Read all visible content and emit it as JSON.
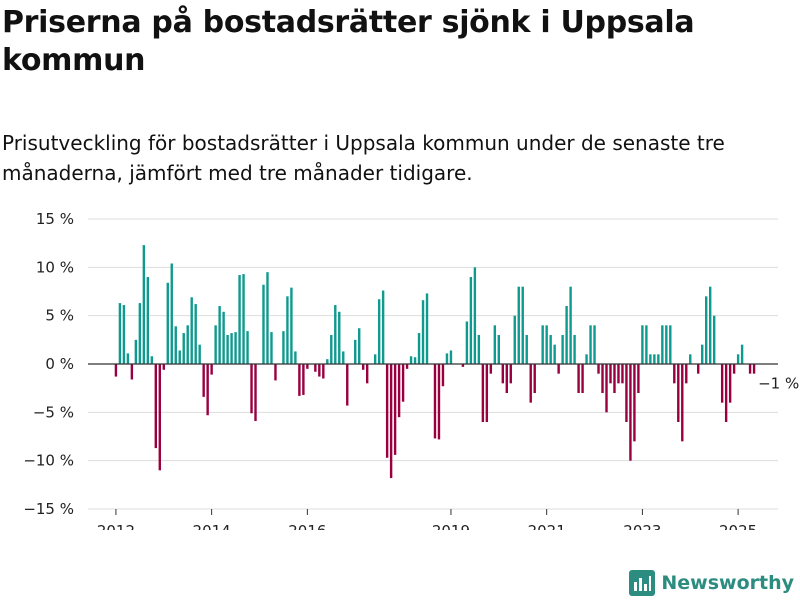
{
  "title": "Priserna på bostadsrätter sjönk i Uppsala kommun",
  "subtitle": "Prisutveckling för bostadsrätter i Uppsala kommun under de senaste tre månaderna, jämfört med tre månader tidigare.",
  "brand": {
    "name": "Newsworthy",
    "icon": "newsworthy-logo-icon"
  },
  "colors": {
    "positive": "#0f9a8f",
    "negative": "#990040",
    "grid": "#dddddd",
    "axis": "#333333"
  },
  "chart_data": {
    "type": "bar",
    "title": "Priserna på bostadsrätter sjönk i Uppsala kommun",
    "subtitle": "Prisutveckling för bostadsrätter i Uppsala kommun under de senaste tre månaderna, jämfört med tre månader tidigare.",
    "xlabel": "",
    "ylabel": "",
    "unit": "%",
    "ylim": [
      -15,
      15
    ],
    "y_ticks": [
      15,
      10,
      5,
      0,
      -5,
      -10,
      -15
    ],
    "y_tick_labels": [
      "15 %",
      "10 %",
      "5 %",
      "0 %",
      "−5 %",
      "−10 %",
      "−15 %"
    ],
    "x_ticks": [
      2012,
      2014,
      2016,
      2019,
      2021,
      2023,
      2025
    ],
    "x_range": [
      "2011-06",
      "2025-11"
    ],
    "grid": "horizontal",
    "end_label": "−1 %",
    "series": [
      {
        "values": [
          {
            "x": "2012-01",
            "y": -1.3
          },
          {
            "x": "2012-02",
            "y": 6.3
          },
          {
            "x": "2012-03",
            "y": 6.1
          },
          {
            "x": "2012-04",
            "y": 1.1
          },
          {
            "x": "2012-05",
            "y": -1.6
          },
          {
            "x": "2012-06",
            "y": 2.5
          },
          {
            "x": "2012-07",
            "y": 6.3
          },
          {
            "x": "2012-08",
            "y": 12.3
          },
          {
            "x": "2012-09",
            "y": 9.0
          },
          {
            "x": "2012-10",
            "y": 0.8
          },
          {
            "x": "2012-11",
            "y": -8.7
          },
          {
            "x": "2012-12",
            "y": -11.0
          },
          {
            "x": "2013-01",
            "y": -0.6
          },
          {
            "x": "2013-02",
            "y": 8.4
          },
          {
            "x": "2013-03",
            "y": 10.4
          },
          {
            "x": "2013-04",
            "y": 3.9
          },
          {
            "x": "2013-05",
            "y": 1.4
          },
          {
            "x": "2013-06",
            "y": 3.2
          },
          {
            "x": "2013-07",
            "y": 4.0
          },
          {
            "x": "2013-08",
            "y": 6.9
          },
          {
            "x": "2013-09",
            "y": 6.2
          },
          {
            "x": "2013-10",
            "y": 2.0
          },
          {
            "x": "2013-11",
            "y": -3.4
          },
          {
            "x": "2013-12",
            "y": -5.3
          },
          {
            "x": "2014-01",
            "y": -1.1
          },
          {
            "x": "2014-02",
            "y": 4.0
          },
          {
            "x": "2014-03",
            "y": 6.0
          },
          {
            "x": "2014-04",
            "y": 5.4
          },
          {
            "x": "2014-05",
            "y": 3.0
          },
          {
            "x": "2014-06",
            "y": 3.2
          },
          {
            "x": "2014-07",
            "y": 3.3
          },
          {
            "x": "2014-08",
            "y": 9.2
          },
          {
            "x": "2014-09",
            "y": 9.3
          },
          {
            "x": "2014-10",
            "y": 3.4
          },
          {
            "x": "2014-11",
            "y": -5.1
          },
          {
            "x": "2014-12",
            "y": -5.9
          },
          {
            "x": "2015-02",
            "y": 8.2
          },
          {
            "x": "2015-03",
            "y": 9.5
          },
          {
            "x": "2015-04",
            "y": 3.3
          },
          {
            "x": "2015-05",
            "y": -1.7
          },
          {
            "x": "2015-07",
            "y": 3.4
          },
          {
            "x": "2015-08",
            "y": 7.0
          },
          {
            "x": "2015-09",
            "y": 7.9
          },
          {
            "x": "2015-10",
            "y": 1.3
          },
          {
            "x": "2015-11",
            "y": -3.3
          },
          {
            "x": "2015-12",
            "y": -3.2
          },
          {
            "x": "2016-01",
            "y": -0.5
          },
          {
            "x": "2016-03",
            "y": -0.8
          },
          {
            "x": "2016-04",
            "y": -1.3
          },
          {
            "x": "2016-05",
            "y": -1.5
          },
          {
            "x": "2016-06",
            "y": 0.5
          },
          {
            "x": "2016-07",
            "y": 3.0
          },
          {
            "x": "2016-08",
            "y": 6.1
          },
          {
            "x": "2016-09",
            "y": 5.4
          },
          {
            "x": "2016-10",
            "y": 1.3
          },
          {
            "x": "2016-11",
            "y": -4.3
          },
          {
            "x": "2017-01",
            "y": 2.5
          },
          {
            "x": "2017-02",
            "y": 3.7
          },
          {
            "x": "2017-03",
            "y": -0.6
          },
          {
            "x": "2017-04",
            "y": -2.0
          },
          {
            "x": "2017-06",
            "y": 1.0
          },
          {
            "x": "2017-07",
            "y": 6.7
          },
          {
            "x": "2017-08",
            "y": 7.6
          },
          {
            "x": "2017-09",
            "y": -9.7
          },
          {
            "x": "2017-10",
            "y": -11.8
          },
          {
            "x": "2017-11",
            "y": -9.4
          },
          {
            "x": "2017-12",
            "y": -5.5
          },
          {
            "x": "2018-01",
            "y": -3.9
          },
          {
            "x": "2018-02",
            "y": -0.5
          },
          {
            "x": "2018-03",
            "y": 0.8
          },
          {
            "x": "2018-04",
            "y": 0.7
          },
          {
            "x": "2018-05",
            "y": 3.2
          },
          {
            "x": "2018-06",
            "y": 6.6
          },
          {
            "x": "2018-07",
            "y": 7.3
          },
          {
            "x": "2018-09",
            "y": -7.7
          },
          {
            "x": "2018-10",
            "y": -7.8
          },
          {
            "x": "2018-11",
            "y": -2.3
          },
          {
            "x": "2018-12",
            "y": 1.1
          },
          {
            "x": "2019-01",
            "y": 1.4
          },
          {
            "x": "2019-04",
            "y": -0.3
          },
          {
            "x": "2019-05",
            "y": 4.4
          },
          {
            "x": "2019-06",
            "y": 9.0
          },
          {
            "x": "2019-07",
            "y": 10.0
          },
          {
            "x": "2019-08",
            "y": 3.0
          },
          {
            "x": "2019-09",
            "y": -6.0
          },
          {
            "x": "2019-10",
            "y": -6.0
          },
          {
            "x": "2019-11",
            "y": -1.0
          },
          {
            "x": "2019-12",
            "y": 4.0
          },
          {
            "x": "2020-01",
            "y": 3.0
          },
          {
            "x": "2020-02",
            "y": -2.0
          },
          {
            "x": "2020-03",
            "y": -3.0
          },
          {
            "x": "2020-04",
            "y": -2.0
          },
          {
            "x": "2020-05",
            "y": 5.0
          },
          {
            "x": "2020-06",
            "y": 8.0
          },
          {
            "x": "2020-07",
            "y": 8.0
          },
          {
            "x": "2020-08",
            "y": 3.0
          },
          {
            "x": "2020-09",
            "y": -4.0
          },
          {
            "x": "2020-10",
            "y": -3.0
          },
          {
            "x": "2020-12",
            "y": 4.0
          },
          {
            "x": "2021-01",
            "y": 4.0
          },
          {
            "x": "2021-02",
            "y": 3.0
          },
          {
            "x": "2021-03",
            "y": 2.0
          },
          {
            "x": "2021-04",
            "y": -1.0
          },
          {
            "x": "2021-05",
            "y": 3.0
          },
          {
            "x": "2021-06",
            "y": 6.0
          },
          {
            "x": "2021-07",
            "y": 8.0
          },
          {
            "x": "2021-08",
            "y": 3.0
          },
          {
            "x": "2021-09",
            "y": -3.0
          },
          {
            "x": "2021-10",
            "y": -3.0
          },
          {
            "x": "2021-11",
            "y": 1.0
          },
          {
            "x": "2021-12",
            "y": 4.0
          },
          {
            "x": "2022-01",
            "y": 4.0
          },
          {
            "x": "2022-02",
            "y": -1.0
          },
          {
            "x": "2022-03",
            "y": -3.0
          },
          {
            "x": "2022-04",
            "y": -5.0
          },
          {
            "x": "2022-05",
            "y": -2.0
          },
          {
            "x": "2022-06",
            "y": -3.0
          },
          {
            "x": "2022-07",
            "y": -2.0
          },
          {
            "x": "2022-08",
            "y": -2.0
          },
          {
            "x": "2022-09",
            "y": -6.0
          },
          {
            "x": "2022-10",
            "y": -10.0
          },
          {
            "x": "2022-11",
            "y": -8.0
          },
          {
            "x": "2022-12",
            "y": -3.0
          },
          {
            "x": "2023-01",
            "y": 4.0
          },
          {
            "x": "2023-02",
            "y": 4.0
          },
          {
            "x": "2023-03",
            "y": 1.0
          },
          {
            "x": "2023-04",
            "y": 1.0
          },
          {
            "x": "2023-05",
            "y": 1.0
          },
          {
            "x": "2023-06",
            "y": 4.0
          },
          {
            "x": "2023-07",
            "y": 4.0
          },
          {
            "x": "2023-08",
            "y": 4.0
          },
          {
            "x": "2023-09",
            "y": -2.0
          },
          {
            "x": "2023-10",
            "y": -6.0
          },
          {
            "x": "2023-11",
            "y": -8.0
          },
          {
            "x": "2023-12",
            "y": -2.0
          },
          {
            "x": "2024-01",
            "y": 1.0
          },
          {
            "x": "2024-03",
            "y": -1.0
          },
          {
            "x": "2024-04",
            "y": 2.0
          },
          {
            "x": "2024-05",
            "y": 7.0
          },
          {
            "x": "2024-06",
            "y": 8.0
          },
          {
            "x": "2024-07",
            "y": 5.0
          },
          {
            "x": "2024-09",
            "y": -4.0
          },
          {
            "x": "2024-10",
            "y": -6.0
          },
          {
            "x": "2024-11",
            "y": -4.0
          },
          {
            "x": "2024-12",
            "y": -1.0
          },
          {
            "x": "2025-01",
            "y": 1.0
          },
          {
            "x": "2025-02",
            "y": 2.0
          },
          {
            "x": "2025-04",
            "y": -1.0
          },
          {
            "x": "2025-05",
            "y": -1.0
          }
        ]
      }
    ]
  }
}
